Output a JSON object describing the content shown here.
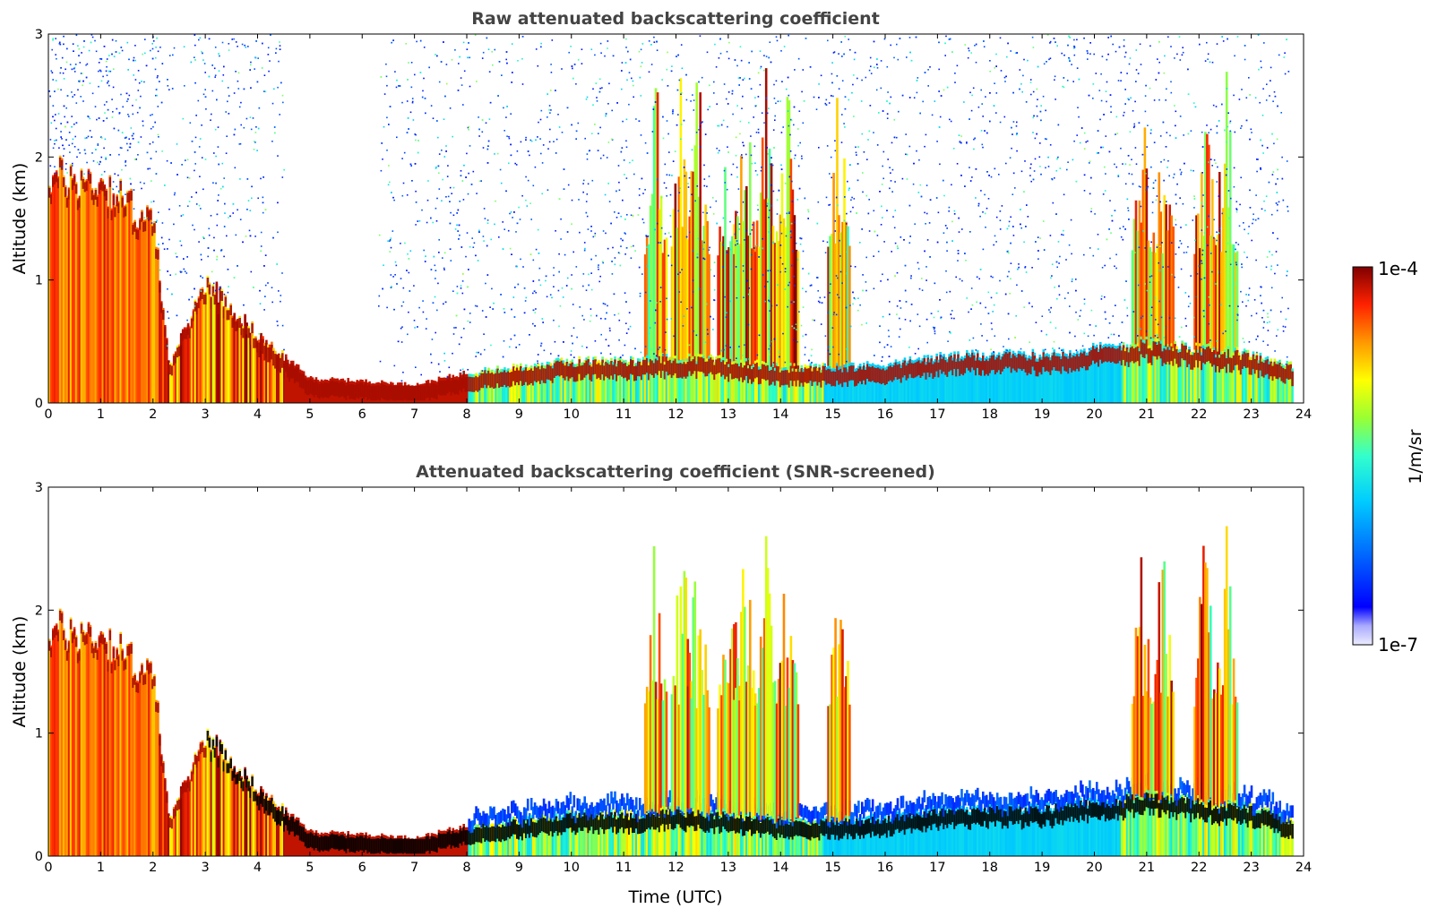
{
  "chart_data": [
    {
      "type": "heatmap",
      "title": "Raw attenuated backscattering coefficient",
      "xlabel": "",
      "ylabel": "Altitude (km)",
      "xlim": [
        0,
        24
      ],
      "ylim": [
        0,
        3
      ],
      "xticks": [
        "0",
        "1",
        "2",
        "3",
        "4",
        "5",
        "6",
        "7",
        "8",
        "9",
        "10",
        "11",
        "12",
        "13",
        "14",
        "15",
        "16",
        "17",
        "18",
        "19",
        "20",
        "21",
        "22",
        "23",
        "24"
      ],
      "yticks": [
        "0",
        "1",
        "2",
        "3"
      ],
      "screened": false,
      "features": [
        {
          "name": "boundary_layer_top_km",
          "x": [
            0,
            1,
            2,
            2.3,
            3,
            4,
            5,
            6,
            7,
            8,
            9,
            10,
            11,
            12,
            13,
            14,
            15,
            16,
            17,
            18,
            19,
            20,
            21,
            22,
            23,
            23.8
          ],
          "values": [
            1.85,
            1.8,
            1.45,
            0.3,
            1.0,
            0.55,
            0.2,
            0.18,
            0.15,
            0.25,
            0.3,
            0.35,
            0.35,
            0.38,
            0.35,
            0.3,
            0.3,
            0.32,
            0.38,
            0.4,
            0.4,
            0.45,
            0.5,
            0.45,
            0.4,
            0.3
          ]
        },
        {
          "name": "cloud_columns_time_h",
          "values": [
            11.6,
            12.1,
            12.4,
            13.0,
            13.3,
            13.7,
            14.1,
            15.1,
            20.9,
            21.3,
            22.1,
            22.5
          ]
        }
      ],
      "noise_free_interval_h": [
        4.5,
        6.3
      ]
    },
    {
      "type": "heatmap",
      "title": "Attenuated backscattering coefficient (SNR-screened)",
      "xlabel": "Time (UTC)",
      "ylabel": "Altitude (km)",
      "xlim": [
        0,
        24
      ],
      "ylim": [
        0,
        3
      ],
      "xticks": [
        "0",
        "1",
        "2",
        "3",
        "4",
        "5",
        "6",
        "7",
        "8",
        "9",
        "10",
        "11",
        "12",
        "13",
        "14",
        "15",
        "16",
        "17",
        "18",
        "19",
        "20",
        "21",
        "22",
        "23",
        "24"
      ],
      "yticks": [
        "0",
        "1",
        "2",
        "3"
      ],
      "screened": true
    }
  ],
  "colorbar": {
    "label": "1/m/sr",
    "max_label": "1e-4",
    "min_label": "1e-7",
    "colors": [
      "#e6e6ff",
      "#b3b3ff",
      "#0000ff",
      "#0066ff",
      "#00ccff",
      "#33ffcc",
      "#99ff33",
      "#ffff00",
      "#ff9900",
      "#ff3300",
      "#cc0000",
      "#800000"
    ]
  }
}
